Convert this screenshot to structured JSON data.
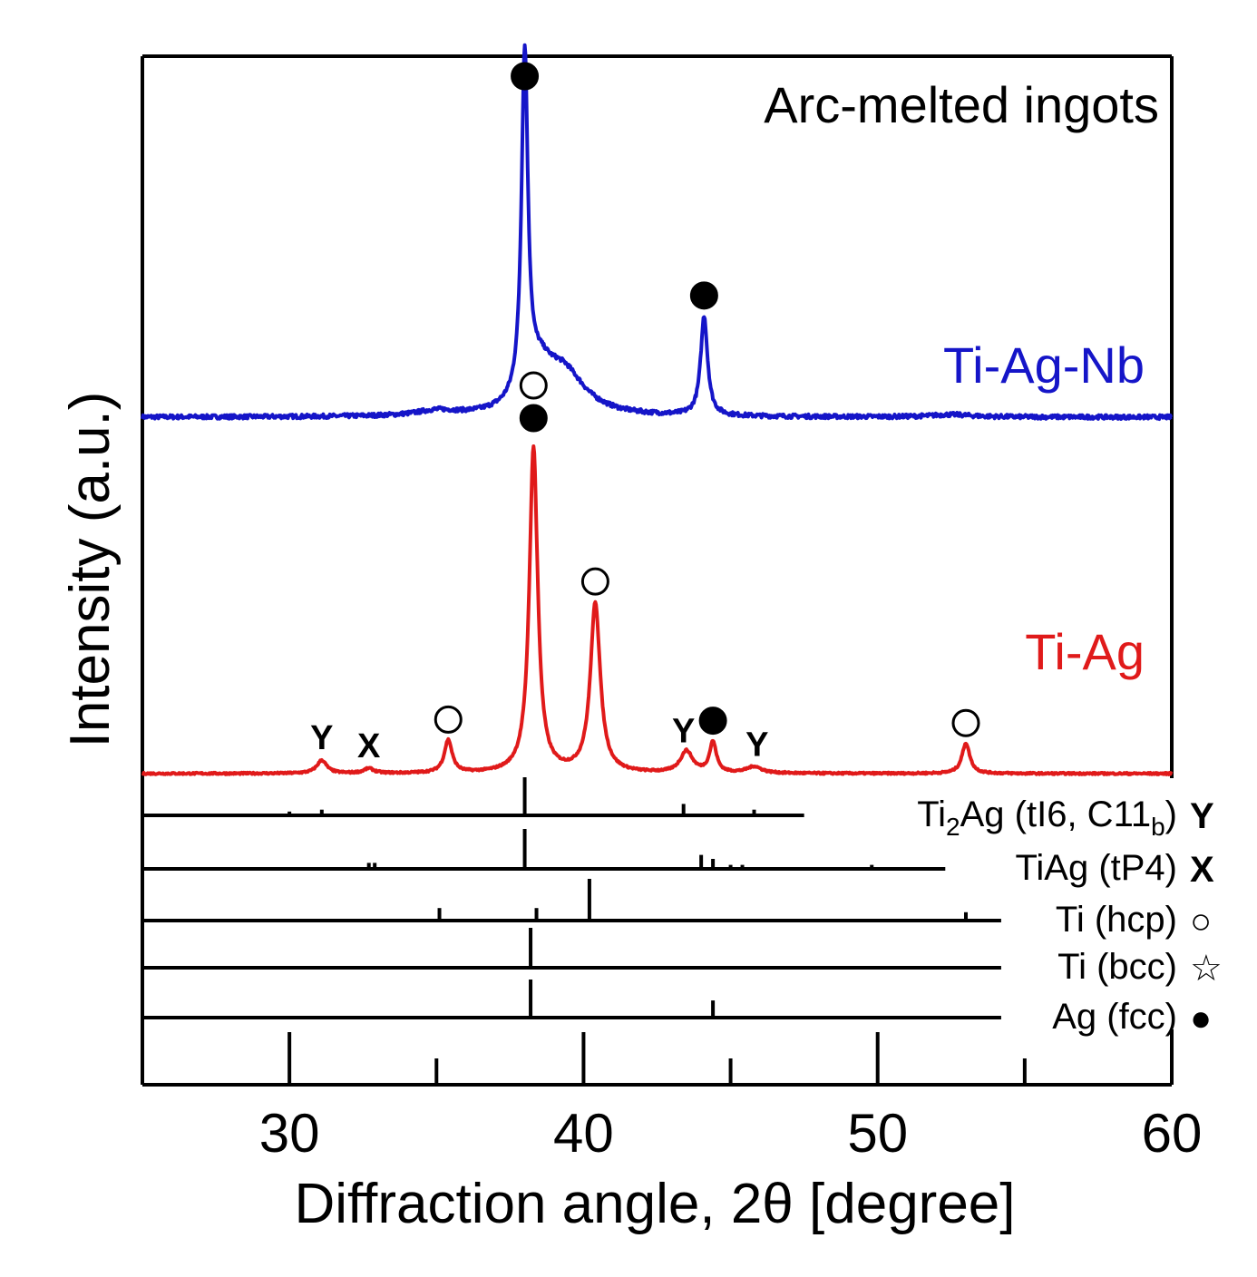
{
  "chart_data": {
    "type": "line",
    "title": "Arc-melted ingots",
    "xlabel": "Diffraction angle, 2θ [degree]",
    "ylabel": "Intensity (a.u.)",
    "xlim": [
      25,
      60
    ],
    "x_ticks": [
      30,
      40,
      50,
      60
    ],
    "x_tick_labels": [
      "30",
      "40",
      "50",
      "60"
    ],
    "x_minor_ticks": [
      35,
      45,
      55
    ],
    "grid": false,
    "series": [
      {
        "name": "Ti-Ag-Nb",
        "color": "#1515c8",
        "baseline": 1.0,
        "noise": 0.05,
        "peaks": [
          {
            "x": 38.0,
            "height": 17.2,
            "width": 0.13
          },
          {
            "x": 38.5,
            "height": 1.6,
            "width": 0.5
          },
          {
            "x": 39.3,
            "height": 2.2,
            "width": 0.9
          },
          {
            "x": 44.1,
            "height": 5.0,
            "width": 0.14
          },
          {
            "x": 35.0,
            "height": 0.25,
            "width": 0.8
          },
          {
            "x": 52.5,
            "height": 0.12,
            "width": 0.8
          }
        ],
        "markers": [
          {
            "x": 38.0,
            "symbol": "filled-circle"
          },
          {
            "x": 44.1,
            "symbol": "filled-circle"
          }
        ]
      },
      {
        "name": "Ti-Ag",
        "color": "#e01a1a",
        "baseline": 0.0,
        "noise": 0.02,
        "peaks": [
          {
            "x": 31.1,
            "height": 0.6,
            "width": 0.2
          },
          {
            "x": 32.7,
            "height": 0.22,
            "width": 0.2
          },
          {
            "x": 35.4,
            "height": 1.5,
            "width": 0.16
          },
          {
            "x": 38.3,
            "height": 15.0,
            "width": 0.17
          },
          {
            "x": 40.4,
            "height": 7.8,
            "width": 0.2
          },
          {
            "x": 43.5,
            "height": 1.0,
            "width": 0.25
          },
          {
            "x": 44.4,
            "height": 1.4,
            "width": 0.14
          },
          {
            "x": 45.8,
            "height": 0.3,
            "width": 0.3
          },
          {
            "x": 53.0,
            "height": 1.4,
            "width": 0.16
          }
        ],
        "markers": [
          {
            "x": 38.3,
            "symbol": "open-circle"
          },
          {
            "x": 38.3,
            "symbol": "filled-circle"
          },
          {
            "x": 40.4,
            "symbol": "open-circle"
          },
          {
            "x": 35.4,
            "symbol": "open-circle"
          },
          {
            "x": 53.0,
            "symbol": "open-circle"
          },
          {
            "x": 44.4,
            "symbol": "filled-circle"
          },
          {
            "x": 31.1,
            "symbol": "Y"
          },
          {
            "x": 32.7,
            "symbol": "X"
          },
          {
            "x": 43.4,
            "symbol": "Y"
          },
          {
            "x": 45.9,
            "symbol": "Y"
          }
        ]
      }
    ],
    "reference_patterns": [
      {
        "name": "Ti2Ag (tI6, C11b)",
        "formula": {
          "a": "Ti",
          "b": "2",
          "c": "Ag (tI6, C11",
          "d": "b",
          "e": ")"
        },
        "symbol": "Y",
        "line_end": 47.5,
        "lines": [
          {
            "x": 30.0,
            "h": 0.1
          },
          {
            "x": 31.1,
            "h": 0.15
          },
          {
            "x": 38.0,
            "h": 1.0
          },
          {
            "x": 43.4,
            "h": 0.3
          },
          {
            "x": 45.8,
            "h": 0.15
          }
        ]
      },
      {
        "name": "TiAg (tP4)",
        "symbol": "X",
        "line_end": 52.3,
        "lines": [
          {
            "x": 32.7,
            "h": 0.15
          },
          {
            "x": 32.9,
            "h": 0.15
          },
          {
            "x": 38.0,
            "h": 1.0
          },
          {
            "x": 44.0,
            "h": 0.35
          },
          {
            "x": 44.4,
            "h": 0.25
          },
          {
            "x": 45.0,
            "h": 0.1
          },
          {
            "x": 45.4,
            "h": 0.1
          },
          {
            "x": 49.8,
            "h": 0.1
          }
        ]
      },
      {
        "name": "Ti (hcp)",
        "symbol": "○",
        "line_end": 54.2,
        "lines": [
          {
            "x": 35.1,
            "h": 0.3
          },
          {
            "x": 38.4,
            "h": 0.3
          },
          {
            "x": 40.2,
            "h": 1.0
          },
          {
            "x": 53.0,
            "h": 0.2
          }
        ]
      },
      {
        "name": "Ti (bcc)",
        "symbol": "☆",
        "line_end": 54.2,
        "lines": [
          {
            "x": 38.2,
            "h": 1.0
          }
        ]
      },
      {
        "name": "Ag (fcc)",
        "symbol": "●",
        "line_end": 54.2,
        "lines": [
          {
            "x": 38.2,
            "h": 1.0
          },
          {
            "x": 44.4,
            "h": 0.45
          }
        ]
      }
    ]
  }
}
